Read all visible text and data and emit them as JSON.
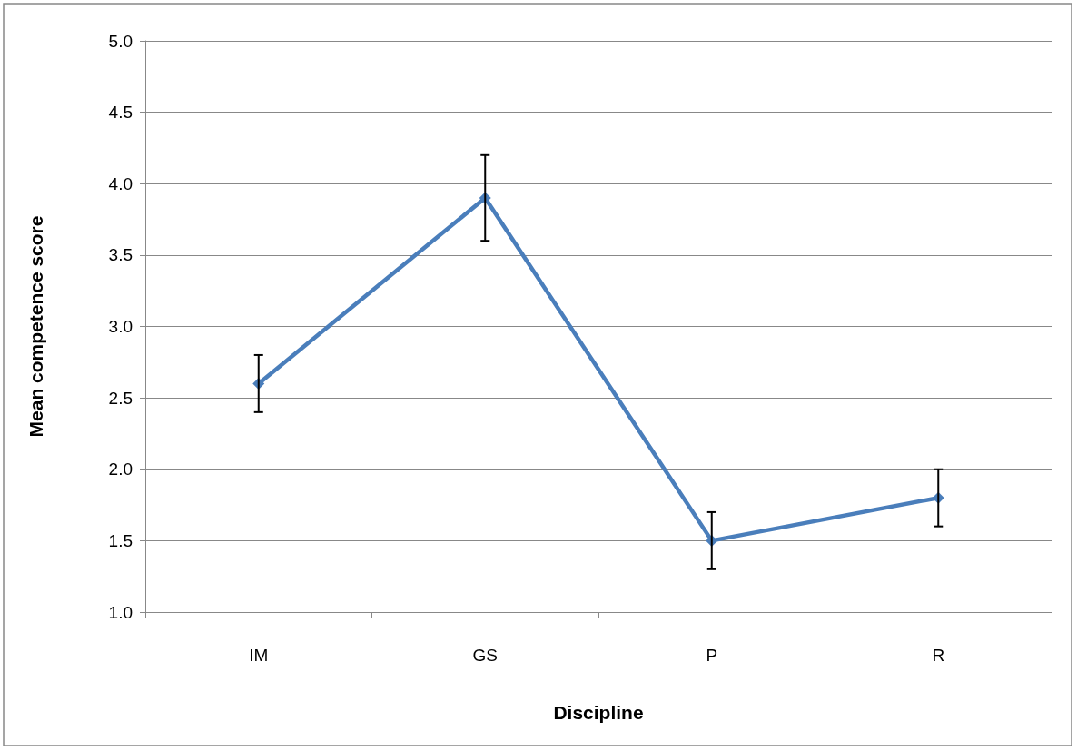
{
  "chart_data": {
    "type": "line",
    "xlabel": "Discipline",
    "ylabel": "Mean competence score",
    "categories": [
      "IM",
      "GS",
      "P",
      "R"
    ],
    "series": [
      {
        "color": "#4a7ebb",
        "values": [
          2.6,
          3.9,
          1.5,
          1.8
        ],
        "errors": [
          0.2,
          0.3,
          0.2,
          0.2
        ]
      }
    ],
    "ylim": [
      1,
      5
    ],
    "yticks": [
      {
        "value": 1,
        "label": "1.0"
      },
      {
        "value": 1.5,
        "label": "1.5"
      },
      {
        "value": 2,
        "label": "2.0"
      },
      {
        "value": 2.5,
        "label": "2.5"
      },
      {
        "value": 3,
        "label": "3.0"
      },
      {
        "value": 3.5,
        "label": "3.5"
      },
      {
        "value": 4,
        "label": "4.0"
      },
      {
        "value": 4.5,
        "label": "4.5"
      },
      {
        "value": 5,
        "label": "5.0"
      }
    ],
    "grid": "y",
    "marker": "diamond",
    "line_style": "solid"
  }
}
